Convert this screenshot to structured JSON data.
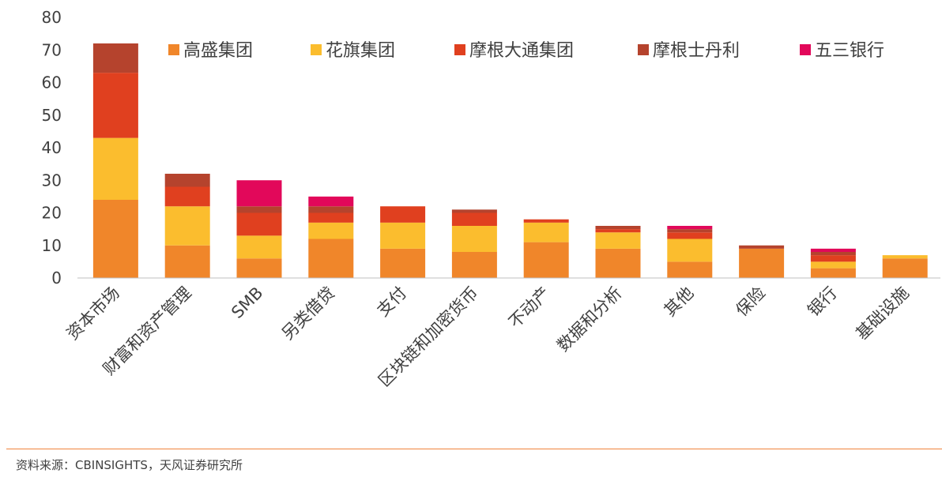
{
  "chart_data": {
    "type": "bar",
    "stacked": true,
    "categories": [
      "资本市场",
      "财富和资产管理",
      "SMB",
      "另类借贷",
      "支付",
      "区块链和加密货币",
      "不动产",
      "数据和分析",
      "其他",
      "保险",
      "银行",
      "基础设施"
    ],
    "series": [
      {
        "name": "高盛集团",
        "color": "#f0862a",
        "values": [
          24,
          10,
          6,
          12,
          9,
          8,
          11,
          9,
          5,
          9,
          3,
          6
        ]
      },
      {
        "name": "花旗集团",
        "color": "#fbbd2e",
        "values": [
          19,
          12,
          7,
          5,
          8,
          8,
          6,
          5,
          7,
          0,
          2,
          1
        ]
      },
      {
        "name": "摩根大通集团",
        "color": "#e0401f",
        "values": [
          20,
          6,
          7,
          3,
          5,
          4,
          1,
          1,
          2,
          0,
          2,
          0
        ]
      },
      {
        "name": "摩根士丹利",
        "color": "#b5432d",
        "values": [
          9,
          4,
          2,
          2,
          0,
          1,
          0,
          1,
          1,
          1,
          1,
          0
        ]
      },
      {
        "name": "五三银行",
        "color": "#e2085a",
        "values": [
          0,
          0,
          8,
          3,
          0,
          0,
          0,
          0,
          1,
          0,
          1,
          0
        ]
      }
    ],
    "ylim": [
      0,
      80
    ],
    "yticks": [
      0,
      10,
      20,
      30,
      40,
      50,
      60,
      70,
      80
    ],
    "grid": false,
    "legend": "top"
  },
  "source": "资料来源：CBINSIGHTS，天风证券研究所"
}
